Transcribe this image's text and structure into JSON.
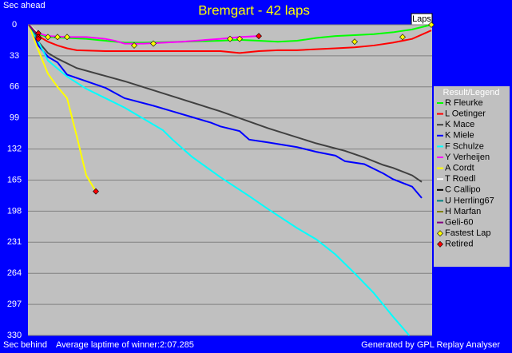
{
  "chart_data": {
    "type": "line",
    "title": "Bremgart - 42 laps",
    "y_label_top": "Sec ahead",
    "y_label_bottom": "Sec behind",
    "x_label": "Laps",
    "footer_left": "Average laptime of winner:2:07.285",
    "footer_right": "Generated by GPL Replay Analyser",
    "legend_title": "Result/Legend",
    "xlim": [
      0,
      42
    ],
    "ylim": [
      0,
      330
    ],
    "y_inverted": true,
    "yticks": [
      0,
      33,
      66,
      99,
      132,
      165,
      198,
      231,
      264,
      297,
      330
    ],
    "grid": true,
    "legend_position": "right",
    "series": [
      {
        "name": "R Fleurke",
        "color": "#00ff00",
        "x": [
          0,
          1,
          2,
          4,
          6,
          8,
          10,
          12,
          16,
          20,
          22,
          24,
          26,
          28,
          30,
          32,
          34,
          36,
          38,
          40,
          42
        ],
        "values": [
          0,
          10,
          13,
          14,
          15,
          17,
          19,
          19,
          18,
          17,
          16,
          17,
          18,
          17,
          14,
          12,
          11,
          10,
          8,
          5,
          0
        ]
      },
      {
        "name": "L Oetinger",
        "color": "#ff0000",
        "x": [
          0,
          1,
          2,
          3,
          4,
          5,
          8,
          12,
          16,
          20,
          22,
          24,
          26,
          28,
          30,
          32,
          34,
          36,
          38,
          40,
          42
        ],
        "values": [
          0,
          12,
          18,
          22,
          25,
          27,
          28,
          28,
          28,
          28,
          30,
          28,
          27,
          27,
          26,
          25,
          24,
          22,
          19,
          15,
          6
        ]
      },
      {
        "name": "K Mace",
        "color": "#404040",
        "x": [
          0,
          1,
          2,
          3,
          5,
          10,
          15,
          20,
          25,
          30,
          33,
          35,
          37,
          38,
          40,
          41
        ],
        "values": [
          0,
          18,
          30,
          36,
          46,
          60,
          76,
          92,
          110,
          126,
          134,
          141,
          149,
          152,
          160,
          167
        ]
      },
      {
        "name": "K Miele",
        "color": "#0000ff",
        "x": [
          0,
          1,
          2,
          3,
          4,
          6,
          8,
          10,
          13,
          15,
          17,
          19,
          20,
          22,
          23,
          25,
          28,
          30,
          32,
          33,
          35,
          37,
          38,
          40,
          41
        ],
        "values": [
          0,
          22,
          34,
          40,
          53,
          60,
          67,
          78,
          86,
          92,
          98,
          104,
          108,
          113,
          122,
          125,
          130,
          135,
          139,
          145,
          148,
          158,
          164,
          172,
          184
        ]
      },
      {
        "name": "F Schulze",
        "color": "#00ffff",
        "x": [
          0,
          1,
          2,
          4,
          6,
          8,
          10,
          12,
          14,
          15,
          17,
          20,
          23,
          25,
          28,
          30,
          32,
          34,
          36,
          38,
          39.7
        ],
        "values": [
          0,
          18,
          38,
          55,
          68,
          78,
          88,
          100,
          112,
          122,
          140,
          162,
          182,
          196,
          216,
          228,
          244,
          264,
          285,
          310,
          330
        ]
      },
      {
        "name": "Y Verheijen",
        "color": "#ff00ff",
        "x": [
          0,
          1,
          2,
          4,
          6,
          8,
          9,
          10,
          12,
          16,
          20,
          22,
          24
        ],
        "values": [
          0,
          9,
          12,
          13,
          13,
          15,
          17,
          20,
          20,
          18,
          15,
          13,
          12
        ]
      },
      {
        "name": "A Cordt",
        "color": "#ffff00",
        "x": [
          0,
          1,
          2,
          3,
          4,
          5,
          6,
          7
        ],
        "values": [
          0,
          27,
          52,
          66,
          78,
          118,
          160,
          177
        ]
      },
      {
        "name": "T Roedl",
        "color": "#ffffff",
        "x": [
          0,
          1
        ],
        "values": [
          0,
          9
        ]
      },
      {
        "name": "C Callipo",
        "color": "#000000",
        "x": [
          0,
          1
        ],
        "values": [
          0,
          13
        ]
      },
      {
        "name": "U Herrling67",
        "color": "#008080",
        "x": [
          0,
          1
        ],
        "values": [
          0,
          15
        ]
      },
      {
        "name": "H Marfan",
        "color": "#808000",
        "x": [
          0,
          1
        ],
        "values": [
          0,
          11
        ]
      },
      {
        "name": "Geli-60",
        "color": "#800080",
        "x": [
          0,
          1
        ],
        "values": [
          0,
          12
        ]
      }
    ],
    "markers": [
      {
        "name": "Fastest Lap",
        "color": "#ffff00",
        "points": [
          [
            1,
            13
          ],
          [
            2,
            13
          ],
          [
            3,
            13
          ],
          [
            4,
            13
          ],
          [
            11,
            22
          ],
          [
            13,
            20
          ],
          [
            21,
            15
          ],
          [
            22,
            15
          ],
          [
            34,
            18
          ],
          [
            39,
            13
          ],
          [
            42,
            0
          ]
        ]
      },
      {
        "name": "Retired",
        "color": "#ff0000",
        "points": [
          [
            1,
            9
          ],
          [
            1,
            13
          ],
          [
            1,
            15
          ],
          [
            24,
            12
          ],
          [
            7,
            177
          ]
        ]
      }
    ]
  }
}
